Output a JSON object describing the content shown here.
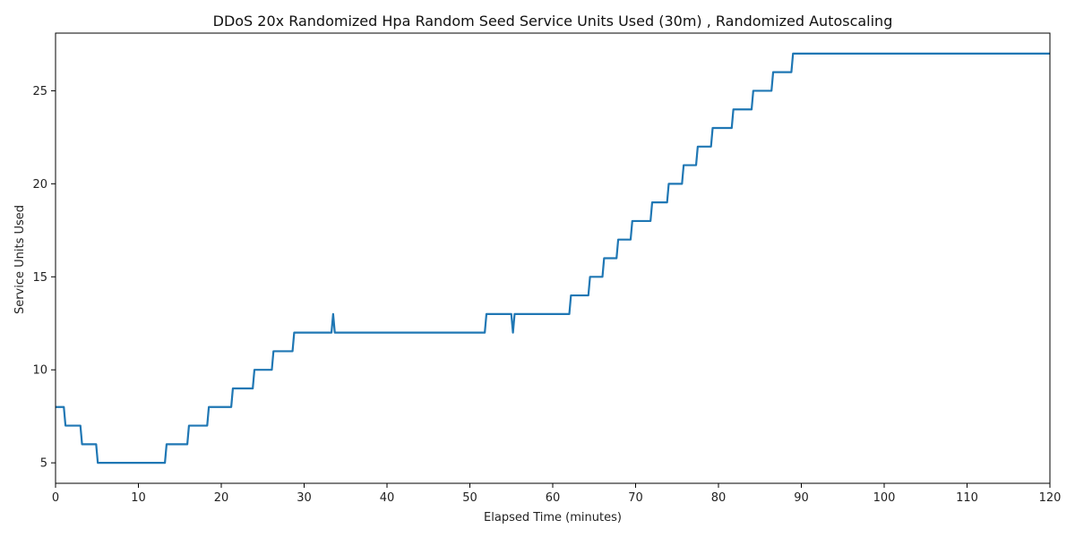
{
  "chart_data": {
    "type": "line",
    "title": "DDoS 20x Randomized Hpa Random Seed Service Units Used (30m) , Randomized Autoscaling",
    "xlabel": "Elapsed Time (minutes)",
    "ylabel": "Service Units Used",
    "xlim": [
      0,
      120
    ],
    "ylim": [
      3.9,
      28.1
    ],
    "xticks": [
      0,
      10,
      20,
      30,
      40,
      50,
      60,
      70,
      80,
      90,
      100,
      110,
      120
    ],
    "yticks": [
      5,
      10,
      15,
      20,
      25
    ],
    "grid": false,
    "legend": "none",
    "series": [
      {
        "color": "#1f77b4",
        "x": [
          0,
          1.0,
          1.2,
          3.0,
          3.2,
          4.9,
          5.1,
          13.2,
          13.4,
          15.9,
          16.1,
          18.3,
          18.5,
          21.2,
          21.4,
          23.8,
          24.0,
          26.1,
          26.3,
          28.6,
          28.8,
          33.3,
          33.5,
          33.7,
          51.8,
          52.0,
          55.0,
          55.2,
          55.4,
          62.0,
          62.2,
          64.3,
          64.5,
          66.0,
          66.2,
          67.7,
          67.9,
          69.4,
          69.6,
          71.8,
          72.0,
          73.8,
          74.0,
          75.6,
          75.8,
          77.3,
          77.5,
          79.1,
          79.3,
          81.6,
          81.8,
          84.0,
          84.2,
          86.4,
          86.6,
          88.8,
          89.0,
          120
        ],
        "y": [
          8,
          8,
          7,
          7,
          6,
          6,
          5,
          5,
          6,
          6,
          7,
          7,
          8,
          8,
          9,
          9,
          10,
          10,
          11,
          11,
          12,
          12,
          13,
          12,
          12,
          13,
          13,
          12,
          13,
          13,
          14,
          14,
          15,
          15,
          16,
          16,
          17,
          17,
          18,
          18,
          19,
          19,
          20,
          20,
          21,
          21,
          22,
          22,
          23,
          23,
          24,
          24,
          25,
          25,
          26,
          26,
          27,
          27
        ]
      }
    ]
  }
}
